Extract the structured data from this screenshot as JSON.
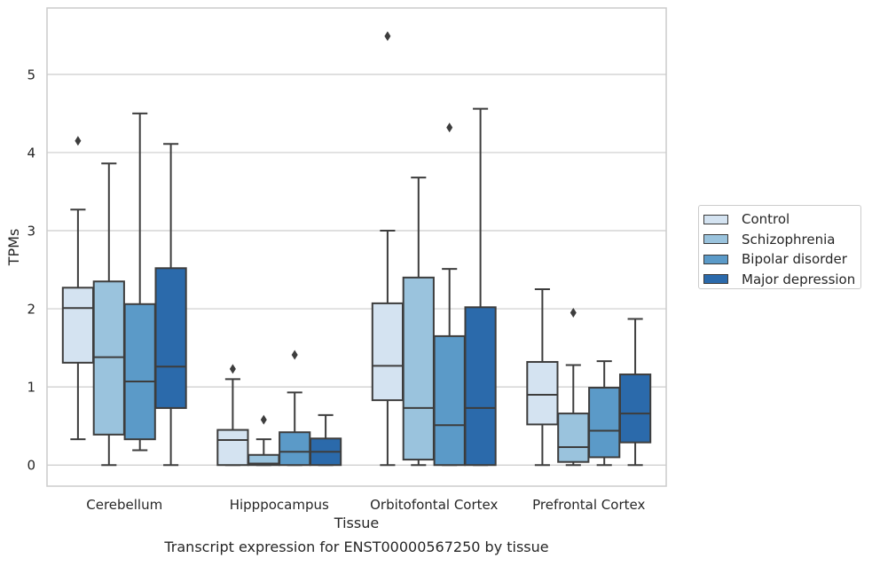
{
  "chart_data": {
    "type": "box",
    "title": "",
    "caption": "Transcript expression for ENST00000567250 by tissue",
    "xlabel": "Tissue",
    "ylabel": "TPMs",
    "ylim": [
      -0.27,
      5.85
    ],
    "yticks": [
      0,
      1,
      2,
      3,
      4,
      5
    ],
    "grid": "horizontal",
    "legend_position": "right",
    "categories": [
      "Cerebellum",
      "Hipppocampus",
      "Orbitofontal Cortex",
      "Prefrontal Cortex"
    ],
    "series": [
      {
        "name": "Control",
        "color": "#d4e3f1",
        "boxes": [
          {
            "whislo": 0.33,
            "q1": 1.31,
            "med": 2.01,
            "q3": 2.27,
            "whishi": 3.27,
            "fliers": [
              4.15
            ]
          },
          {
            "whislo": 0.0,
            "q1": 0.0,
            "med": 0.32,
            "q3": 0.45,
            "whishi": 1.1,
            "fliers": [
              1.23
            ]
          },
          {
            "whislo": 0.0,
            "q1": 0.83,
            "med": 1.27,
            "q3": 2.07,
            "whishi": 3.0,
            "fliers": [
              5.49
            ]
          },
          {
            "whislo": 0.0,
            "q1": 0.52,
            "med": 0.9,
            "q3": 1.32,
            "whishi": 2.25,
            "fliers": []
          }
        ]
      },
      {
        "name": "Schizophrenia",
        "color": "#9ac3dd",
        "boxes": [
          {
            "whislo": 0.0,
            "q1": 0.39,
            "med": 1.38,
            "q3": 2.35,
            "whishi": 3.86,
            "fliers": []
          },
          {
            "whislo": 0.0,
            "q1": 0.0,
            "med": 0.02,
            "q3": 0.13,
            "whishi": 0.33,
            "fliers": [
              0.58
            ]
          },
          {
            "whislo": 0.0,
            "q1": 0.07,
            "med": 0.73,
            "q3": 2.4,
            "whishi": 3.68,
            "fliers": []
          },
          {
            "whislo": 0.0,
            "q1": 0.04,
            "med": 0.23,
            "q3": 0.66,
            "whishi": 1.28,
            "fliers": [
              1.95
            ]
          }
        ]
      },
      {
        "name": "Bipolar disorder",
        "color": "#5b9ac8",
        "boxes": [
          {
            "whislo": 0.19,
            "q1": 0.33,
            "med": 1.07,
            "q3": 2.06,
            "whishi": 4.5,
            "fliers": []
          },
          {
            "whislo": 0.0,
            "q1": 0.0,
            "med": 0.17,
            "q3": 0.42,
            "whishi": 0.93,
            "fliers": [
              1.41
            ]
          },
          {
            "whislo": 0.0,
            "q1": 0.0,
            "med": 0.51,
            "q3": 1.65,
            "whishi": 2.51,
            "fliers": [
              4.32
            ]
          },
          {
            "whislo": 0.0,
            "q1": 0.1,
            "med": 0.44,
            "q3": 0.99,
            "whishi": 1.33,
            "fliers": []
          }
        ]
      },
      {
        "name": "Major depression",
        "color": "#2b6aab",
        "boxes": [
          {
            "whislo": 0.0,
            "q1": 0.73,
            "med": 1.26,
            "q3": 2.52,
            "whishi": 4.11,
            "fliers": []
          },
          {
            "whislo": 0.0,
            "q1": 0.0,
            "med": 0.17,
            "q3": 0.34,
            "whishi": 0.64,
            "fliers": []
          },
          {
            "whislo": 0.0,
            "q1": 0.0,
            "med": 0.73,
            "q3": 2.02,
            "whishi": 4.56,
            "fliers": []
          },
          {
            "whislo": 0.0,
            "q1": 0.29,
            "med": 0.66,
            "q3": 1.16,
            "whishi": 1.87,
            "fliers": []
          }
        ]
      }
    ]
  }
}
